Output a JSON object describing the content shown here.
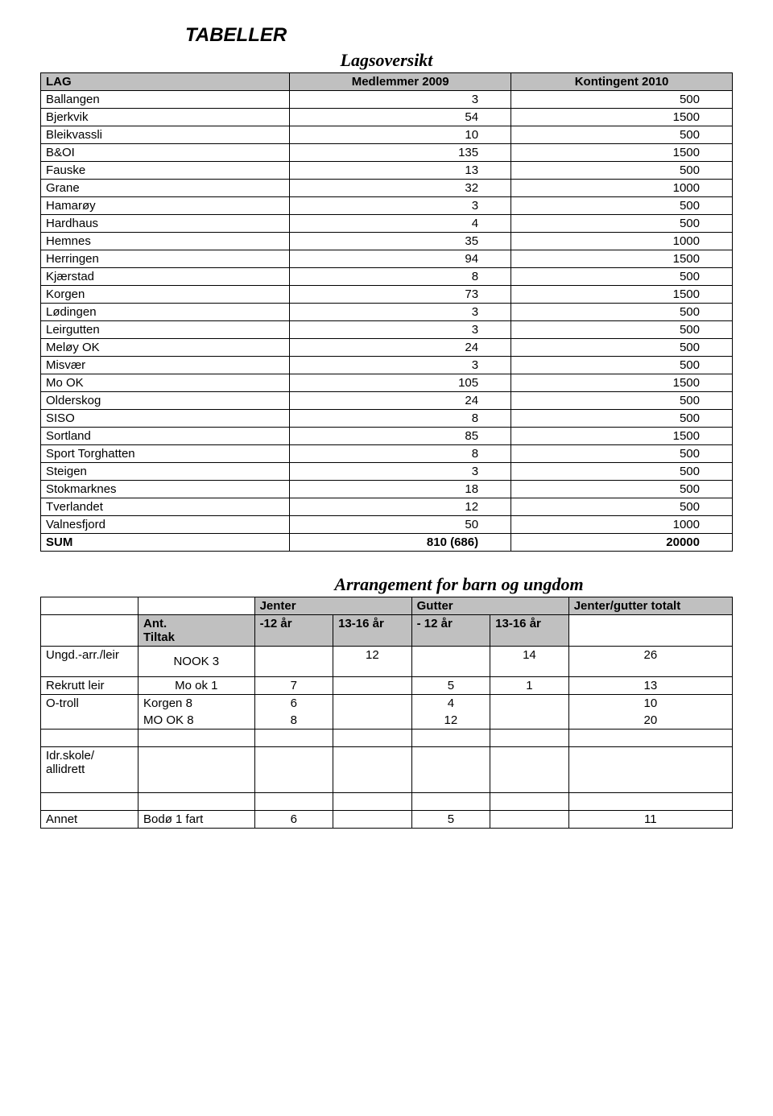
{
  "title": "TABELLER",
  "subtitle": "Lagsoversikt",
  "lagTable": {
    "headers": {
      "lag": "LAG",
      "medlemmer": "Medlemmer 2009",
      "kontingent": "Kontingent 2010"
    },
    "rows": [
      {
        "lag": "Ballangen",
        "m": "3",
        "k": "500"
      },
      {
        "lag": "Bjerkvik",
        "m": "54",
        "k": "1500"
      },
      {
        "lag": "Bleikvassli",
        "m": "10",
        "k": "500"
      },
      {
        "lag": "B&OI",
        "m": "135",
        "k": "1500"
      },
      {
        "lag": "Fauske",
        "m": "13",
        "k": "500"
      },
      {
        "lag": "Grane",
        "m": "32",
        "k": "1000"
      },
      {
        "lag": "Hamarøy",
        "m": "3",
        "k": "500"
      },
      {
        "lag": "Hardhaus",
        "m": "4",
        "k": "500"
      },
      {
        "lag": "Hemnes",
        "m": "35",
        "k": "1000"
      },
      {
        "lag": "Herringen",
        "m": "94",
        "k": "1500"
      },
      {
        "lag": "Kjærstad",
        "m": "8",
        "k": "500"
      },
      {
        "lag": "Korgen",
        "m": "73",
        "k": "1500"
      },
      {
        "lag": "Lødingen",
        "m": "3",
        "k": "500"
      },
      {
        "lag": "Leirgutten",
        "m": "3",
        "k": "500"
      },
      {
        "lag": "Meløy OK",
        "m": "24",
        "k": "500"
      },
      {
        "lag": "Misvær",
        "m": "3",
        "k": "500"
      },
      {
        "lag": "Mo OK",
        "m": "105",
        "k": "1500"
      },
      {
        "lag": "Olderskog",
        "m": "24",
        "k": "500"
      },
      {
        "lag": "SISO",
        "m": "8",
        "k": "500"
      },
      {
        "lag": "Sortland",
        "m": "85",
        "k": "1500"
      },
      {
        "lag": "Sport Torghatten",
        "m": "8",
        "k": "500"
      },
      {
        "lag": "Steigen",
        "m": "3",
        "k": "500"
      },
      {
        "lag": "Stokmarknes",
        "m": "18",
        "k": "500"
      },
      {
        "lag": "Tverlandet",
        "m": "12",
        "k": "500"
      },
      {
        "lag": "Valnesfjord",
        "m": "50",
        "k": "1000"
      }
    ],
    "sum": {
      "lag": "SUM",
      "m": "810 (686)",
      "k": "20000"
    }
  },
  "arr": {
    "title": "Arrangement for barn og ungdom",
    "headers": {
      "jenter": "Jenter",
      "gutter": "Gutter",
      "totalt": "Jenter/gutter totalt",
      "tiltak": "Ant.\nTiltak",
      "j12": "-12 år",
      "j1316": "13-16 år",
      "g12": "- 12 år",
      "g1316": "13-16 år"
    },
    "rows": {
      "ungd": {
        "label": "Ungd.-arr./leir",
        "tiltak": "NOOK  3",
        "j12": "",
        "j1316": "12",
        "g12": "",
        "g1316": "14",
        "tot": "26"
      },
      "rekrutt": {
        "label": "Rekrutt leir",
        "tiltak": "Mo ok 1",
        "j12": "7",
        "j1316": "",
        "g12": "5",
        "g1316": "1",
        "tot": "13"
      },
      "otroll1": {
        "label": "O-troll",
        "tiltak": "Korgen 8",
        "j12": "6",
        "j1316": "",
        "g12": "4",
        "g1316": "",
        "tot": "10"
      },
      "otroll2": {
        "tiltak": "MO OK 8",
        "j12": "8",
        "j1316": "",
        "g12": "12",
        "g1316": "",
        "tot": "20"
      },
      "idr": {
        "label": "Idr.skole/ allidrett"
      },
      "annet": {
        "label": "Annet",
        "tiltak": "Bodø  1 fart",
        "j12": "6",
        "j1316": "",
        "g12": "5",
        "g1316": "",
        "tot": "11"
      }
    }
  }
}
